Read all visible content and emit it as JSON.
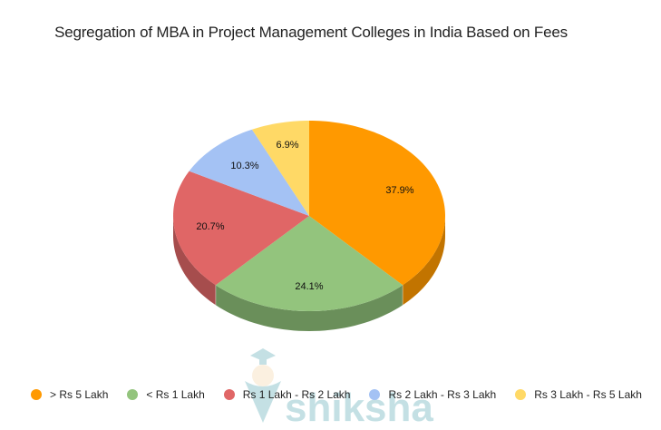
{
  "chart_data": {
    "type": "pie",
    "style": "3d",
    "title": "Segregation of MBA in Project Management Colleges in India Based on Fees",
    "categories": [
      "> Rs 5 Lakh",
      "< Rs 1 Lakh",
      "Rs 1 Lakh - Rs 2 Lakh",
      "Rs 2 Lakh - Rs 3 Lakh",
      "Rs 3 Lakh - Rs 5 Lakh"
    ],
    "values": [
      37.9,
      24.1,
      20.7,
      10.3,
      6.9
    ],
    "labels": [
      "37.9%",
      "24.1%",
      "20.7%",
      "10.3%",
      "6.9%"
    ],
    "colors": [
      "#FF9900",
      "#93C47D",
      "#E06666",
      "#A4C2F4",
      "#FFD966"
    ],
    "side_colors": [
      "#C27400",
      "#6A8F5A",
      "#A64D4D",
      "#7A93BC",
      "#C9A94F"
    ],
    "legend_position": "bottom",
    "start_angle": "top, clockwise"
  },
  "title": "Segregation of MBA in Project Management Colleges in India Based on Fees",
  "legend": [
    {
      "label": "> Rs 5 Lakh",
      "color": "#FF9900"
    },
    {
      "label": "< Rs 1 Lakh",
      "color": "#93C47D"
    },
    {
      "label": "Rs 1 Lakh - Rs 2 Lakh",
      "color": "#E06666"
    },
    {
      "label": "Rs 2 Lakh - Rs 3 Lakh",
      "color": "#A4C2F4"
    },
    {
      "label": "Rs 3 Lakh - Rs 5 Lakh",
      "color": "#FFD966"
    }
  ],
  "watermark": "shiksha"
}
